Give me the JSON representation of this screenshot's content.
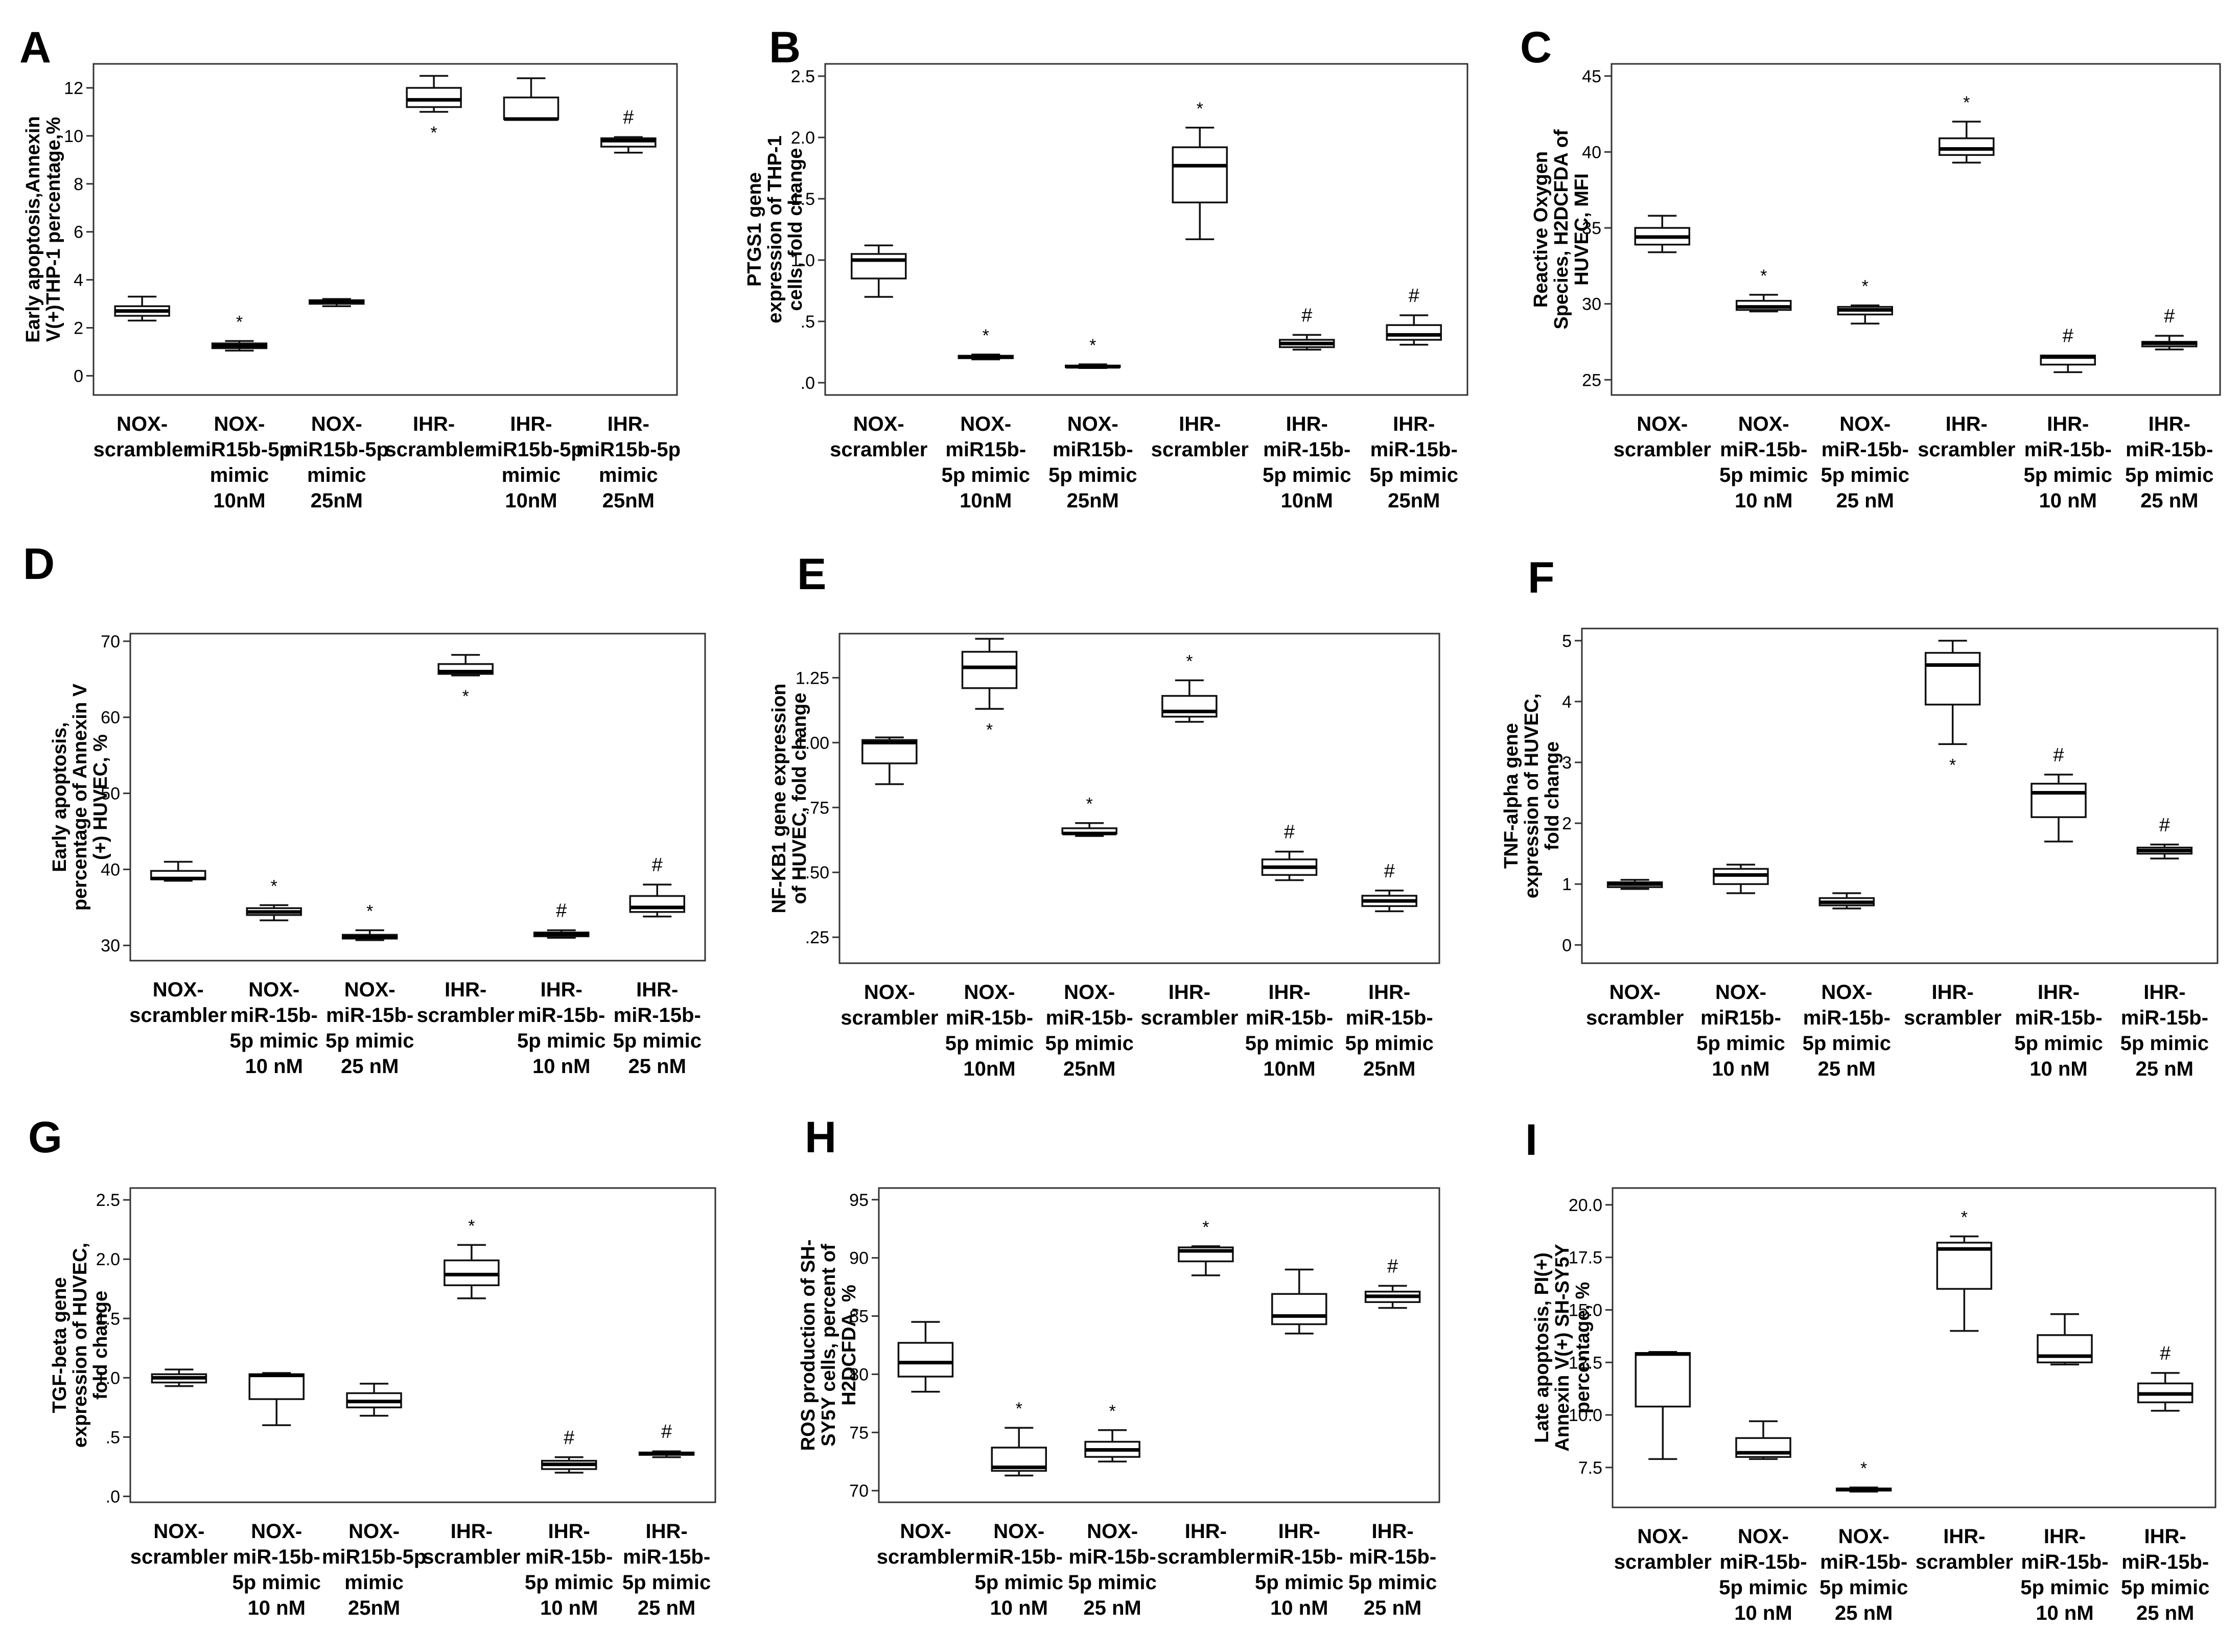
{
  "chart_data": [
    {
      "type": "boxplot",
      "panel": "A",
      "ylabel": [
        "Early apoptosis,Annexin",
        "V(+)THP-1 percentage,%"
      ],
      "ylim": [
        -0.8,
        13.0
      ],
      "yticks": [
        0,
        2,
        4,
        6,
        8,
        10,
        12
      ],
      "tick_labels": [
        "0",
        "2",
        "4",
        "6",
        "8",
        "10",
        "12"
      ],
      "categories": [
        [
          "NOX-",
          "scrambler"
        ],
        [
          "NOX-",
          "miR15b-5p",
          "mimic",
          "10nM"
        ],
        [
          "NOX-",
          "miR15b-5p",
          "mimic",
          "25nM"
        ],
        [
          "IHR-",
          "scrambler"
        ],
        [
          "IHR-",
          "miR15b-5p",
          "mimic",
          "10nM"
        ],
        [
          "IHR-",
          "miR15b-5p",
          "mimic",
          "25nM"
        ]
      ],
      "boxes": [
        {
          "min": 2.3,
          "q1": 2.5,
          "median": 2.7,
          "q3": 2.9,
          "max": 3.3,
          "mark": ""
        },
        {
          "min": 1.05,
          "q1": 1.15,
          "median": 1.25,
          "q3": 1.35,
          "max": 1.45,
          "mark": "*"
        },
        {
          "min": 2.9,
          "q1": 3.0,
          "median": 3.1,
          "q3": 3.15,
          "max": 3.2,
          "mark": ""
        },
        {
          "min": 11.0,
          "q1": 11.2,
          "median": 11.5,
          "q3": 12.0,
          "max": 12.5,
          "mark": "*",
          "mark_pos": "below"
        },
        {
          "min": 10.7,
          "q1": 10.7,
          "median": 10.7,
          "q3": 11.6,
          "max": 12.4,
          "mark": ""
        },
        {
          "min": 9.3,
          "q1": 9.55,
          "median": 9.8,
          "q3": 9.9,
          "max": 9.95,
          "mark": "#"
        }
      ]
    },
    {
      "type": "boxplot",
      "panel": "B",
      "ylabel": [
        "PTGS1 gene",
        "expression of THP-1",
        "cells, fold change"
      ],
      "ylim": [
        -0.1,
        2.6
      ],
      "yticks": [
        0,
        0.5,
        1.0,
        1.5,
        2.0,
        2.5
      ],
      "tick_labels": [
        ".0",
        ".5",
        "1.0",
        "1.5",
        "2.0",
        "2.5"
      ],
      "categories": [
        [
          "NOX-",
          "scrambler"
        ],
        [
          "NOX-",
          "miR15b-",
          "5p mimic",
          "10nM"
        ],
        [
          "NOX-",
          "miR15b-",
          "5p mimic",
          "25nM"
        ],
        [
          "IHR-",
          "scrambler"
        ],
        [
          "IHR-",
          "miR-15b-",
          "5p mimic",
          "10nM"
        ],
        [
          "IHR-",
          "miR-15b-",
          "5p mimic",
          "25nM"
        ]
      ],
      "boxes": [
        {
          "min": 0.7,
          "q1": 0.85,
          "median": 1.0,
          "q3": 1.05,
          "max": 1.12,
          "mark": ""
        },
        {
          "min": 0.19,
          "q1": 0.2,
          "median": 0.21,
          "q3": 0.22,
          "max": 0.23,
          "mark": "*"
        },
        {
          "min": 0.12,
          "q1": 0.13,
          "median": 0.13,
          "q3": 0.14,
          "max": 0.15,
          "mark": "*"
        },
        {
          "min": 1.17,
          "q1": 1.47,
          "median": 1.77,
          "q3": 1.92,
          "max": 2.08,
          "mark": "*"
        },
        {
          "min": 0.27,
          "q1": 0.29,
          "median": 0.32,
          "q3": 0.35,
          "max": 0.39,
          "mark": "#"
        },
        {
          "min": 0.31,
          "q1": 0.35,
          "median": 0.39,
          "q3": 0.47,
          "max": 0.55,
          "mark": "#"
        }
      ]
    },
    {
      "type": "boxplot",
      "panel": "C",
      "ylabel": [
        "Reactive Oxygen",
        "Species, H2DCFDA of",
        "HUVEC, MFI"
      ],
      "ylim": [
        24.0,
        45.8
      ],
      "yticks": [
        25,
        30,
        35,
        40,
        45
      ],
      "tick_labels": [
        "25",
        "30",
        "35",
        "40",
        "45"
      ],
      "categories": [
        [
          "NOX-",
          "scrambler"
        ],
        [
          "NOX-",
          "miR-15b-",
          "5p mimic",
          "10 nM"
        ],
        [
          "NOX-",
          "miR-15b-",
          "5p mimic",
          "25 nM"
        ],
        [
          "IHR-",
          "scrambler"
        ],
        [
          "IHR-",
          "miR-15b-",
          "5p mimic",
          "10 nM"
        ],
        [
          "IHR-",
          "miR-15b-",
          "5p mimic",
          "25 nM"
        ]
      ],
      "boxes": [
        {
          "min": 33.4,
          "q1": 33.9,
          "median": 34.4,
          "q3": 35.0,
          "max": 35.8,
          "mark": ""
        },
        {
          "min": 29.5,
          "q1": 29.6,
          "median": 29.8,
          "q3": 30.2,
          "max": 30.6,
          "mark": "*"
        },
        {
          "min": 28.7,
          "q1": 29.3,
          "median": 29.6,
          "q3": 29.8,
          "max": 29.9,
          "mark": "*"
        },
        {
          "min": 39.3,
          "q1": 39.8,
          "median": 40.2,
          "q3": 40.9,
          "max": 42.0,
          "mark": "*"
        },
        {
          "min": 25.5,
          "q1": 26.0,
          "median": 26.5,
          "q3": 26.6,
          "max": 26.6,
          "mark": "#"
        },
        {
          "min": 27.0,
          "q1": 27.2,
          "median": 27.4,
          "q3": 27.5,
          "max": 27.9,
          "mark": "#"
        }
      ]
    },
    {
      "type": "boxplot",
      "panel": "D",
      "ylabel": [
        "Early apoptosis,",
        "percentage of Annexin V",
        "(+) HUVEC, %"
      ],
      "ylim": [
        28.0,
        71.0
      ],
      "yticks": [
        30,
        40,
        50,
        60,
        70
      ],
      "tick_labels": [
        "30",
        "40",
        "50",
        "60",
        "70"
      ],
      "categories": [
        [
          "NOX-",
          "scrambler"
        ],
        [
          "NOX-",
          "miR-15b-",
          "5p mimic",
          "10 nM"
        ],
        [
          "NOX-",
          "miR-15b-",
          "5p mimic",
          "25 nM"
        ],
        [
          "IHR-",
          "scrambler"
        ],
        [
          "IHR-",
          "miR-15b-",
          "5p mimic",
          "10 nM"
        ],
        [
          "IHR-",
          "miR-15b-",
          "5p mimic",
          "25 nM"
        ]
      ],
      "boxes": [
        {
          "min": 38.5,
          "q1": 38.7,
          "median": 38.8,
          "q3": 39.8,
          "max": 41.0,
          "mark": ""
        },
        {
          "min": 33.3,
          "q1": 34.0,
          "median": 34.4,
          "q3": 34.9,
          "max": 35.3,
          "mark": "*"
        },
        {
          "min": 30.7,
          "q1": 30.9,
          "median": 31.1,
          "q3": 31.4,
          "max": 32.0,
          "mark": "*"
        },
        {
          "min": 65.5,
          "q1": 65.7,
          "median": 66.0,
          "q3": 67.0,
          "max": 68.2,
          "mark": "*",
          "mark_pos": "below"
        },
        {
          "min": 31.0,
          "q1": 31.2,
          "median": 31.5,
          "q3": 31.7,
          "max": 32.0,
          "mark": "#"
        },
        {
          "min": 33.8,
          "q1": 34.4,
          "median": 35.0,
          "q3": 36.5,
          "max": 38.0,
          "mark": "#"
        }
      ]
    },
    {
      "type": "boxplot",
      "panel": "E",
      "ylabel": [
        "NF-KB1 gene expression",
        "of HUVEC, fold change"
      ],
      "ylim": [
        0.15,
        1.42
      ],
      "yticks": [
        0.25,
        0.5,
        0.75,
        1.0,
        1.25
      ],
      "tick_labels": [
        ".25",
        ".50",
        ".75",
        "1.00",
        "1.25"
      ],
      "categories": [
        [
          "NOX-",
          "scrambler"
        ],
        [
          "NOX-",
          "miR-15b-",
          "5p mimic",
          "10nM"
        ],
        [
          "NOX-",
          "miR-15b-",
          "5p mimic",
          "25nM"
        ],
        [
          "IHR-",
          "scrambler"
        ],
        [
          "IHR-",
          "miR-15b-",
          "5p mimic",
          "10nM"
        ],
        [
          "IHR-",
          "miR-15b-",
          "5p mimic",
          "25nM"
        ]
      ],
      "boxes": [
        {
          "min": 0.84,
          "q1": 0.92,
          "median": 1.0,
          "q3": 1.01,
          "max": 1.02,
          "mark": ""
        },
        {
          "min": 1.13,
          "q1": 1.21,
          "median": 1.29,
          "q3": 1.35,
          "max": 1.4,
          "mark": "*",
          "mark_pos": "below"
        },
        {
          "min": 0.64,
          "q1": 0.65,
          "median": 0.65,
          "q3": 0.67,
          "max": 0.69,
          "mark": "*"
        },
        {
          "min": 1.08,
          "q1": 1.1,
          "median": 1.12,
          "q3": 1.18,
          "max": 1.24,
          "mark": "*"
        },
        {
          "min": 0.47,
          "q1": 0.49,
          "median": 0.52,
          "q3": 0.55,
          "max": 0.58,
          "mark": "#"
        },
        {
          "min": 0.35,
          "q1": 0.37,
          "median": 0.39,
          "q3": 0.41,
          "max": 0.43,
          "mark": "#"
        }
      ]
    },
    {
      "type": "boxplot",
      "panel": "F",
      "ylabel": [
        "TNF-alpha gene",
        "expression of HUVEC,",
        "fold change"
      ],
      "ylim": [
        -0.3,
        5.2
      ],
      "yticks": [
        0,
        1,
        2,
        3,
        4,
        5
      ],
      "tick_labels": [
        "0",
        "1",
        "2",
        "3",
        "4",
        "5"
      ],
      "categories": [
        [
          "NOX-",
          "scrambler"
        ],
        [
          "NOX-",
          "miR15b-",
          "5p mimic",
          "10 nM"
        ],
        [
          "NOX-",
          "miR-15b-",
          "5p mimic",
          "25 nM"
        ],
        [
          "IHR-",
          "scrambler"
        ],
        [
          "IHR-",
          "miR-15b-",
          "5p mimic",
          "10 nM"
        ],
        [
          "IHR-",
          "miR-15b-",
          "5p mimic",
          "25 nM"
        ]
      ],
      "boxes": [
        {
          "min": 0.92,
          "q1": 0.95,
          "median": 1.0,
          "q3": 1.03,
          "max": 1.07,
          "mark": ""
        },
        {
          "min": 0.85,
          "q1": 1.0,
          "median": 1.15,
          "q3": 1.25,
          "max": 1.32,
          "mark": ""
        },
        {
          "min": 0.6,
          "q1": 0.65,
          "median": 0.7,
          "q3": 0.77,
          "max": 0.85,
          "mark": ""
        },
        {
          "min": 3.3,
          "q1": 3.95,
          "median": 4.6,
          "q3": 4.8,
          "max": 5.0,
          "mark": "*",
          "mark_pos": "below"
        },
        {
          "min": 1.7,
          "q1": 2.1,
          "median": 2.5,
          "q3": 2.65,
          "max": 2.8,
          "mark": "#"
        },
        {
          "min": 1.42,
          "q1": 1.5,
          "median": 1.55,
          "q3": 1.6,
          "max": 1.65,
          "mark": "#"
        }
      ]
    },
    {
      "type": "boxplot",
      "panel": "G",
      "ylabel": [
        "TGF-beta gene",
        "expression of HUVEC,",
        "fold change"
      ],
      "ylim": [
        -0.05,
        2.6
      ],
      "yticks": [
        0,
        0.5,
        1.0,
        1.5,
        2.0,
        2.5
      ],
      "tick_labels": [
        ".0",
        ".5",
        "1.0",
        "1.5",
        "2.0",
        "2.5"
      ],
      "categories": [
        [
          "NOX-",
          "scrambler"
        ],
        [
          "NOX-",
          "miR-15b-",
          "5p mimic",
          "10 nM"
        ],
        [
          "NOX-",
          "miR15b-5p",
          "mimic",
          "25nM"
        ],
        [
          "IHR-",
          "scrambler"
        ],
        [
          "IHR-",
          "miR-15b-",
          "5p mimic",
          "10 nM"
        ],
        [
          "IHR-",
          "miR-15b-",
          "5p mimic",
          "25 nM"
        ]
      ],
      "boxes": [
        {
          "min": 0.93,
          "q1": 0.96,
          "median": 1.0,
          "q3": 1.03,
          "max": 1.07,
          "mark": ""
        },
        {
          "min": 0.6,
          "q1": 0.82,
          "median": 1.02,
          "q3": 1.03,
          "max": 1.04,
          "mark": ""
        },
        {
          "min": 0.68,
          "q1": 0.75,
          "median": 0.8,
          "q3": 0.87,
          "max": 0.95,
          "mark": ""
        },
        {
          "min": 1.67,
          "q1": 1.78,
          "median": 1.87,
          "q3": 1.99,
          "max": 2.12,
          "mark": "*"
        },
        {
          "min": 0.2,
          "q1": 0.23,
          "median": 0.27,
          "q3": 0.3,
          "max": 0.33,
          "mark": "#"
        },
        {
          "min": 0.33,
          "q1": 0.35,
          "median": 0.36,
          "q3": 0.37,
          "max": 0.38,
          "mark": "#"
        }
      ]
    },
    {
      "type": "boxplot",
      "panel": "H",
      "ylabel": [
        "ROS production of SH-",
        "SY5Y cells, percent of",
        "H2DCFDA, %"
      ],
      "ylim": [
        69.0,
        96.0
      ],
      "yticks": [
        70,
        75,
        80,
        85,
        90,
        95
      ],
      "tick_labels": [
        "70",
        "75",
        "80",
        "85",
        "90",
        "95"
      ],
      "categories": [
        [
          "NOX-",
          "scrambler"
        ],
        [
          "NOX-",
          "miR-15b-",
          "5p mimic",
          "10 nM"
        ],
        [
          "NOX-",
          "miR-15b-",
          "5p mimic",
          "25 nM"
        ],
        [
          "IHR-",
          "scrambler"
        ],
        [
          "IHR-",
          "miR-15b-",
          "5p mimic",
          "10 nM"
        ],
        [
          "IHR-",
          "miR-15b-",
          "5p mimic",
          "25 nM"
        ]
      ],
      "boxes": [
        {
          "min": 78.5,
          "q1": 79.8,
          "median": 81.0,
          "q3": 82.7,
          "max": 84.5,
          "mark": ""
        },
        {
          "min": 71.3,
          "q1": 71.7,
          "median": 72.0,
          "q3": 73.7,
          "max": 75.4,
          "mark": "*"
        },
        {
          "min": 72.5,
          "q1": 72.9,
          "median": 73.5,
          "q3": 74.2,
          "max": 75.2,
          "mark": "*"
        },
        {
          "min": 88.5,
          "q1": 89.7,
          "median": 90.6,
          "q3": 90.9,
          "max": 91.0,
          "mark": "*"
        },
        {
          "min": 83.5,
          "q1": 84.3,
          "median": 85.0,
          "q3": 86.9,
          "max": 89.0,
          "mark": ""
        },
        {
          "min": 85.7,
          "q1": 86.2,
          "median": 86.7,
          "q3": 87.1,
          "max": 87.6,
          "mark": "#"
        }
      ]
    },
    {
      "type": "boxplot",
      "panel": "I",
      "ylabel": [
        "Late apoptosis, PI(+)",
        "Annexin V(+) SH-SY5Y",
        "percentage, %"
      ],
      "ylim": [
        5.6,
        20.8
      ],
      "yticks": [
        7.5,
        10.0,
        12.5,
        15.0,
        17.5,
        20.0
      ],
      "tick_labels": [
        "7.5",
        "10.0",
        "12.5",
        "15.0",
        "17.5",
        "20.0"
      ],
      "categories": [
        [
          "NOX-",
          "scrambler"
        ],
        [
          "NOX-",
          "miR-15b-",
          "5p mimic",
          "10 nM"
        ],
        [
          "NOX-",
          "miR-15b-",
          "5p mimic",
          "25 nM"
        ],
        [
          "IHR-",
          "scrambler"
        ],
        [
          "IHR-",
          "miR-15b-",
          "5p mimic",
          "10 nM"
        ],
        [
          "IHR-",
          "miR-15b-",
          "5p mimic",
          "25 nM"
        ]
      ],
      "boxes": [
        {
          "min": 7.9,
          "q1": 10.4,
          "median": 12.9,
          "q3": 12.95,
          "max": 13.0,
          "mark": ""
        },
        {
          "min": 7.9,
          "q1": 8.0,
          "median": 8.2,
          "q3": 8.9,
          "max": 9.7,
          "mark": ""
        },
        {
          "min": 6.35,
          "q1": 6.4,
          "median": 6.45,
          "q3": 6.5,
          "max": 6.55,
          "mark": "*"
        },
        {
          "min": 14.0,
          "q1": 16.0,
          "median": 17.9,
          "q3": 18.2,
          "max": 18.5,
          "mark": "*"
        },
        {
          "min": 12.4,
          "q1": 12.5,
          "median": 12.8,
          "q3": 13.8,
          "max": 14.8,
          "mark": ""
        },
        {
          "min": 10.2,
          "q1": 10.6,
          "median": 11.0,
          "q3": 11.5,
          "max": 12.0,
          "mark": "#"
        }
      ]
    }
  ]
}
